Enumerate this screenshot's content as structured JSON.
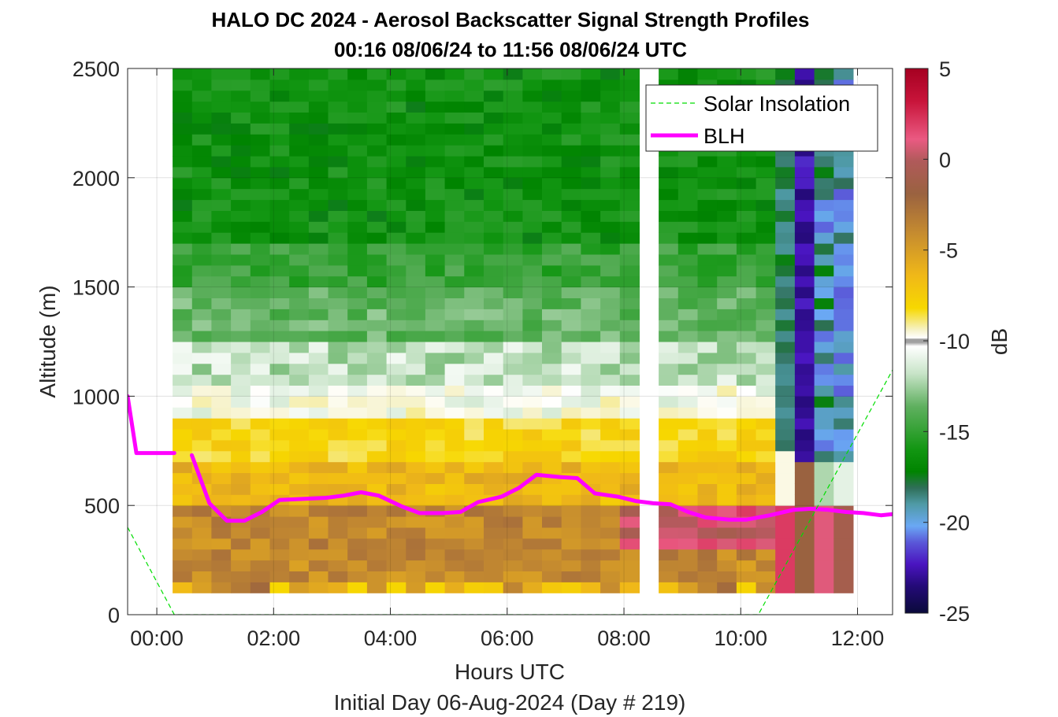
{
  "chart_data": {
    "type": "heatmap",
    "title": "HALO DC 2024 - Aerosol Backscatter Signal Strength Profiles",
    "subtitle": "00:16 08/06/24 to 11:56 08/06/24  UTC",
    "xlabel": "Hours UTC",
    "xlabel2": "Initial Day 06-Aug-2024 (Day # 219)",
    "ylabel": "Altitude (m)",
    "xlim": [
      -0.5,
      12.6
    ],
    "ylim": [
      0,
      2500
    ],
    "x_ticks": [
      0,
      2,
      4,
      6,
      8,
      10,
      12
    ],
    "x_tick_labels": [
      "00:00",
      "02:00",
      "04:00",
      "06:00",
      "08:00",
      "10:00",
      "12:00"
    ],
    "y_ticks": [
      0,
      500,
      1000,
      1500,
      2000,
      2500
    ],
    "y_tick_labels": [
      "0",
      "500",
      "1000",
      "1500",
      "2000",
      "2500"
    ],
    "grid": true,
    "colorbar": {
      "label": "dB",
      "limits": [
        -25,
        5
      ],
      "ticks": [
        5,
        0,
        -5,
        -10,
        -15,
        -20,
        -25
      ],
      "tick_labels": [
        "5",
        "0",
        "-5",
        "-10",
        "-15",
        "-20",
        "-25"
      ]
    },
    "heatmap": {
      "time_start_hours": 0.27,
      "time_step_hours": 0.333,
      "num_profiles": 35,
      "altitude_min": 100,
      "altitude_max": 2500,
      "altitude_step": 50,
      "missing_profiles": [
        24
      ],
      "description_bands_db": [
        {
          "from_m": 100,
          "to_m": 500,
          "db": -3.5
        },
        {
          "from_m": 500,
          "to_m": 900,
          "db": -6.5
        },
        {
          "from_m": 900,
          "to_m": 1100,
          "db": -10.5
        },
        {
          "from_m": 1100,
          "to_m": 1600,
          "db": -13
        },
        {
          "from_m": 1600,
          "to_m": 2500,
          "db": -16
        }
      ]
    },
    "legend": {
      "placement": "top-right",
      "entries": [
        "Solar Insolation",
        "BLH"
      ]
    },
    "series": [
      {
        "name": "BLH",
        "color": "#ff00ff",
        "segments": [
          {
            "x": [
              -0.5,
              -0.35,
              -0.2,
              0.3
            ],
            "y": [
              1000,
              740,
              740,
              740
            ]
          },
          {
            "x": [
              0.6,
              0.9,
              1.2,
              1.5,
              1.8,
              2.1,
              2.5,
              2.9,
              3.2,
              3.5,
              3.8,
              4.2,
              4.5,
              4.9,
              5.2,
              5.5,
              5.9,
              6.2,
              6.5,
              6.9,
              7.2,
              7.5,
              7.9,
              8.2,
              8.5,
              8.8,
              9.1,
              9.4,
              9.8,
              10.1,
              10.5,
              10.9,
              11.2,
              11.5,
              11.8,
              12.1,
              12.4,
              12.6
            ],
            "y": [
              730,
              510,
              430,
              430,
              470,
              525,
              530,
              535,
              545,
              560,
              545,
              495,
              465,
              465,
              470,
              515,
              540,
              580,
              640,
              630,
              625,
              555,
              540,
              520,
              510,
              505,
              470,
              445,
              435,
              435,
              455,
              480,
              485,
              480,
              470,
              465,
              455,
              460
            ]
          }
        ]
      },
      {
        "name": "Solar Insolation",
        "color": "#00dd00",
        "x": [
          -0.5,
          0.3,
          10.3,
          12.6
        ],
        "y": [
          400,
          0,
          0,
          1120
        ]
      }
    ]
  }
}
